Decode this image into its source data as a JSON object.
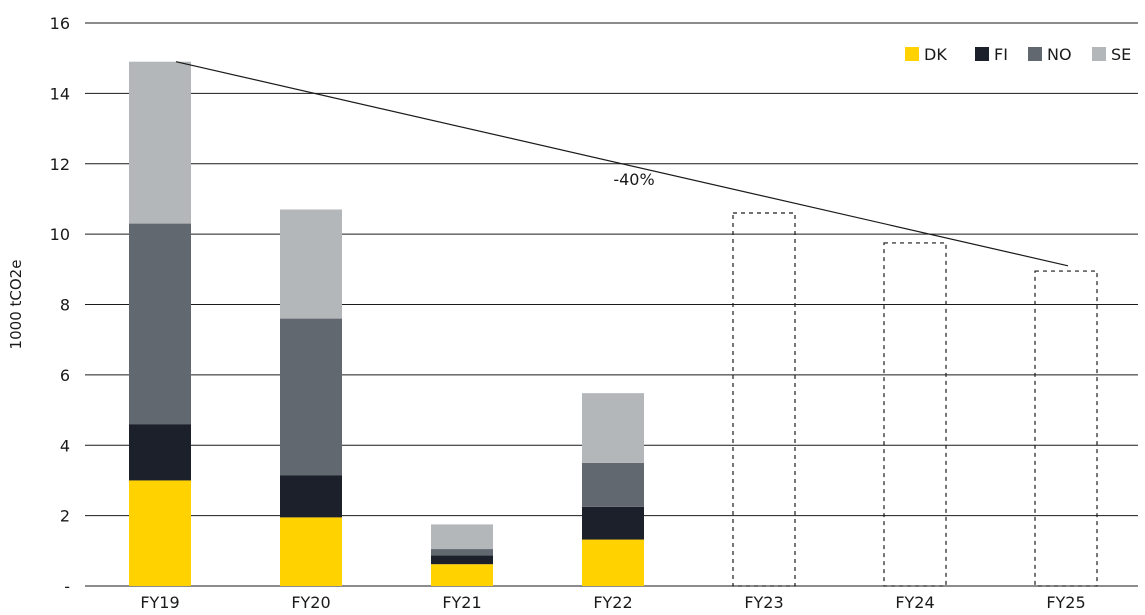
{
  "chart_data": {
    "type": "bar",
    "stacked": true,
    "categories": [
      "FY19",
      "FY20",
      "FY21",
      "FY22",
      "FY23",
      "FY24",
      "FY25"
    ],
    "series": [
      {
        "name": "DK",
        "color": "#FFD200",
        "values": [
          3.0,
          1.95,
          0.62,
          1.32,
          null,
          null,
          null
        ]
      },
      {
        "name": "FI",
        "color": "#1C202B",
        "values": [
          1.6,
          1.2,
          0.25,
          0.93,
          null,
          null,
          null
        ]
      },
      {
        "name": "NO",
        "color": "#626870",
        "values": [
          5.7,
          4.45,
          0.18,
          1.25,
          null,
          null,
          null
        ]
      },
      {
        "name": "SE",
        "color": "#B4B7B9",
        "values": [
          4.6,
          3.1,
          0.7,
          1.98,
          null,
          null,
          null
        ]
      }
    ],
    "targets": {
      "categories": [
        "FY23",
        "FY24",
        "FY25"
      ],
      "values": [
        10.6,
        9.75,
        8.95
      ],
      "style": "dashed-outline"
    },
    "trend_line": {
      "from": {
        "x": "FY19",
        "y": 14.9
      },
      "to": {
        "x": "FY25",
        "y": 9.1
      },
      "label": "-40%"
    },
    "ylabel": "1000 tCO2e",
    "xlabel": "",
    "ylim": [
      0,
      16
    ],
    "yticks": [
      0,
      2,
      4,
      6,
      8,
      10,
      12,
      14,
      16
    ],
    "ytick_labels": [
      "-",
      "2",
      "4",
      "6",
      "8",
      "10",
      "12",
      "14",
      "16"
    ],
    "grid": "horizontal",
    "legend": {
      "position": "top-right",
      "entries": [
        "DK",
        "FI",
        "NO",
        "SE"
      ]
    }
  }
}
